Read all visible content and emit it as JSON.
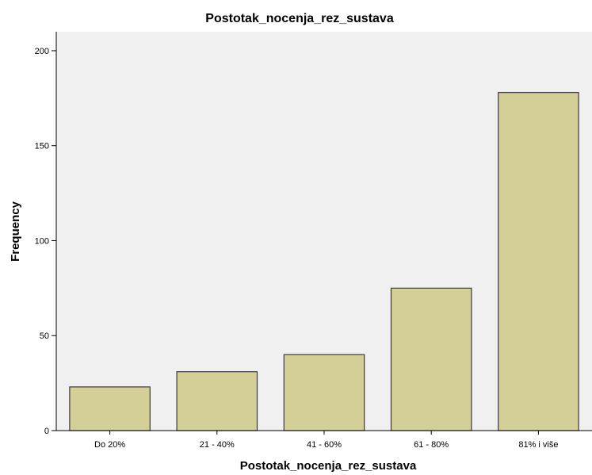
{
  "chart_data": {
    "type": "bar",
    "title": "Postotak_nocenja_rez_sustava",
    "xlabel": "Postotak_nocenja_rez_sustava",
    "ylabel": "Frequency",
    "categories": [
      "Do 20%",
      "21 - 40%",
      "41 - 60%",
      "61 - 80%",
      "81% i više"
    ],
    "values": [
      23,
      31,
      40,
      75,
      178
    ],
    "yticks": [
      0,
      50,
      100,
      150,
      200
    ],
    "ylim": [
      0,
      210
    ],
    "grid": false,
    "colors": {
      "plot_background": "#f0f0f0",
      "bar_fill": "#d4cf97",
      "bar_stroke": "#3a3a3a",
      "axis": "#000000"
    }
  }
}
